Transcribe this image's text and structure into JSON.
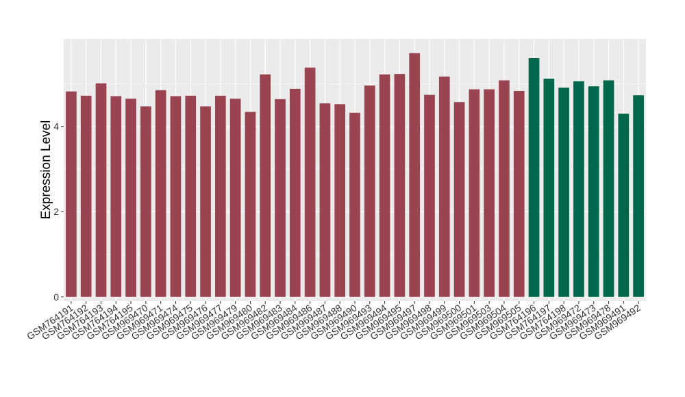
{
  "chart_data": {
    "type": "bar",
    "title": "",
    "xlabel": "",
    "ylabel": "Expression Level",
    "ylim": [
      -0.1,
      6.05
    ],
    "yticks": [
      0,
      2,
      4
    ],
    "grid": true,
    "legend": "none",
    "colors": {
      "group1": "#9a4451",
      "group2": "#00684a",
      "panel": "#ebebeb",
      "gridline": "#ffffff"
    },
    "categories": [
      "GSM764191",
      "GSM764192",
      "GSM764193",
      "GSM764194",
      "GSM764195",
      "GSM969470",
      "GSM969471",
      "GSM969474",
      "GSM969475",
      "GSM969476",
      "GSM969477",
      "GSM969479",
      "GSM969480",
      "GSM969482",
      "GSM969483",
      "GSM969484",
      "GSM969486",
      "GSM969487",
      "GSM969488",
      "GSM969490",
      "GSM969493",
      "GSM969494",
      "GSM969495",
      "GSM969497",
      "GSM969498",
      "GSM969499",
      "GSM969500",
      "GSM969501",
      "GSM969503",
      "GSM969504",
      "GSM969505",
      "GSM764196",
      "GSM764197",
      "GSM764198",
      "GSM969472",
      "GSM969473",
      "GSM969478",
      "GSM969491",
      "GSM969492"
    ],
    "values": [
      4.82,
      4.72,
      5.01,
      4.71,
      4.65,
      4.47,
      4.85,
      4.71,
      4.72,
      4.47,
      4.72,
      4.65,
      4.34,
      5.22,
      4.64,
      4.88,
      5.38,
      4.54,
      4.52,
      4.32,
      4.96,
      5.22,
      5.23,
      5.72,
      4.74,
      5.17,
      4.57,
      4.87,
      4.87,
      5.08,
      4.83,
      5.6,
      5.12,
      4.91,
      5.06,
      4.94,
      5.08,
      4.3,
      4.73
    ],
    "groups": [
      1,
      1,
      1,
      1,
      1,
      1,
      1,
      1,
      1,
      1,
      1,
      1,
      1,
      1,
      1,
      1,
      1,
      1,
      1,
      1,
      1,
      1,
      1,
      1,
      1,
      1,
      1,
      1,
      1,
      1,
      1,
      2,
      2,
      2,
      2,
      2,
      2,
      2,
      2
    ]
  }
}
